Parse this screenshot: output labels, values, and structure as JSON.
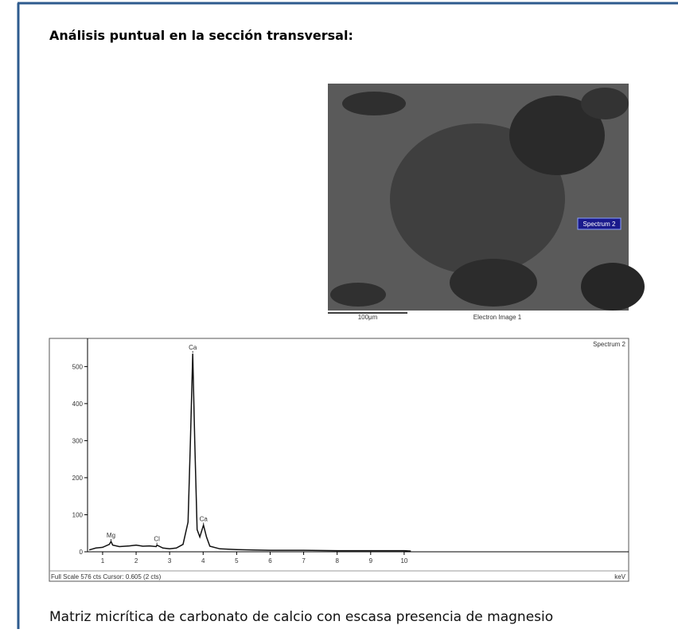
{
  "header": {
    "title": "Análisis puntual  en la sección transversal:"
  },
  "image": {
    "spot_label": "Spectrum 2",
    "scale_label": "100μm",
    "caption": "Electron Image 1"
  },
  "spectrum": {
    "type": "line",
    "title": "Spectrum 2",
    "x_unit": "keV",
    "footer": "Full Scale 576 cts Cursor: 0.605  (2 cts)",
    "xlim": [
      0.55,
      16.7
    ],
    "ylim": [
      0,
      576
    ],
    "xticks": [
      1,
      2,
      3,
      4,
      5,
      6,
      7,
      8,
      9,
      10
    ],
    "yticks": [
      0,
      100,
      200,
      300,
      400,
      500
    ],
    "x": [
      0.6,
      0.8,
      1.0,
      1.2,
      1.25,
      1.3,
      1.5,
      1.8,
      2.0,
      2.2,
      2.4,
      2.6,
      2.62,
      2.8,
      3.0,
      3.2,
      3.4,
      3.55,
      3.62,
      3.69,
      3.75,
      3.82,
      3.9,
      4.01,
      4.1,
      4.2,
      4.5,
      5.0,
      5.5,
      6.0,
      7.0,
      8.0,
      9.0,
      10.0,
      10.2
    ],
    "values": [
      5,
      10,
      12,
      20,
      28,
      18,
      14,
      16,
      18,
      15,
      16,
      14,
      18,
      10,
      8,
      10,
      20,
      80,
      300,
      535,
      300,
      60,
      40,
      72,
      40,
      15,
      8,
      6,
      5,
      4,
      4,
      3,
      3,
      3,
      2
    ],
    "peaks": [
      {
        "label": "Mg",
        "x": 1.25,
        "y": 28
      },
      {
        "label": "Cl",
        "x": 2.62,
        "y": 18
      },
      {
        "label": "Ca",
        "x": 3.69,
        "y": 535
      },
      {
        "label": "Ca",
        "x": 4.01,
        "y": 72
      }
    ]
  },
  "caption": "Matriz micrítica de carbonato de calcio con escasa presencia de magnesio"
}
